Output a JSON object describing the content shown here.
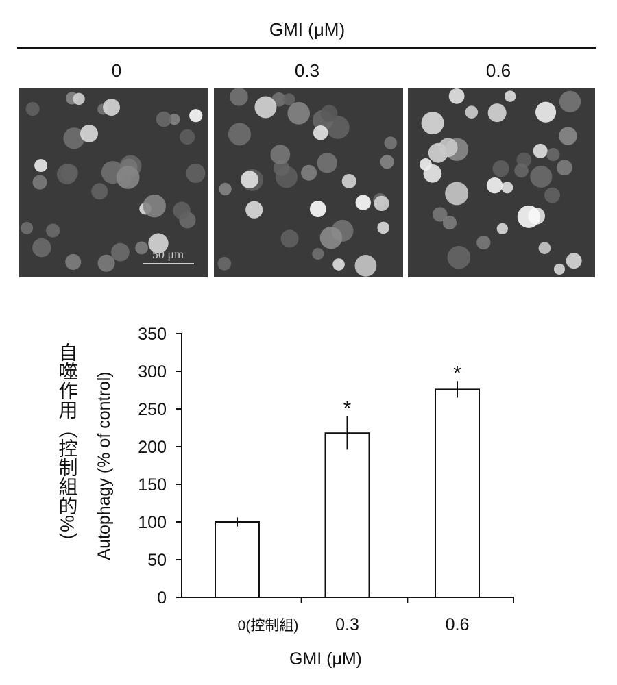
{
  "panel": {
    "header": "GMI (μM)",
    "labels": [
      "0",
      "0.3",
      "0.6"
    ],
    "scale_bar": "50 μm"
  },
  "chart_data": {
    "type": "bar",
    "y_label": "自噬作用（控制組的%）",
    "y_label_en": "Autophagy (% of control)",
    "x_label": "GMI (μM)",
    "categories": [
      "0(控制組)",
      "0.3",
      "0.6"
    ],
    "values": [
      100,
      218,
      276
    ],
    "errors": [
      6,
      22,
      11
    ],
    "annotations": [
      null,
      "*",
      "*"
    ],
    "color": "#ffffff",
    "ylim": [
      0,
      350
    ],
    "yticks": [
      0,
      50,
      100,
      150,
      200,
      250,
      300,
      350
    ]
  }
}
